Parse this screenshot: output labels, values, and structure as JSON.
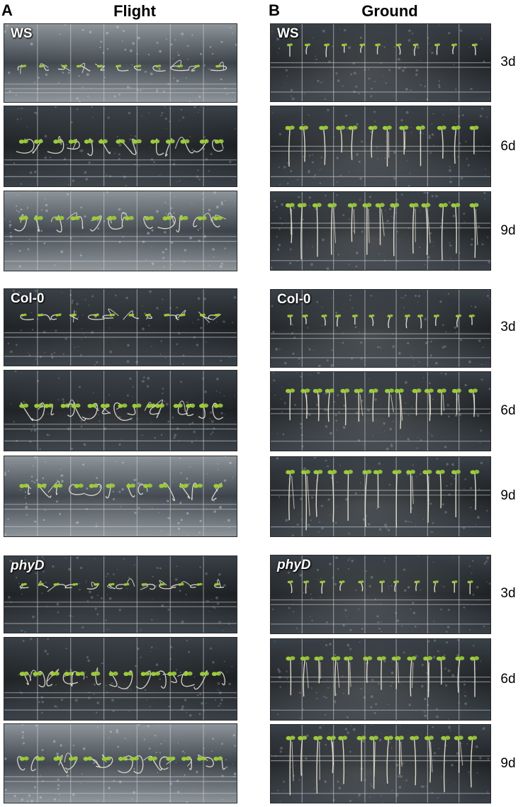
{
  "panels": {
    "a_letter": "A",
    "b_letter": "B"
  },
  "headers": {
    "flight": "Flight",
    "ground": "Ground"
  },
  "genotypes": {
    "ws": "WS",
    "col0": "Col-0",
    "phyd": "phyD"
  },
  "days": {
    "d3": "3d",
    "d6": "6d",
    "d9": "9d"
  },
  "colors": {
    "plate_dark": "#1c1f22",
    "plate_mid": "#3a4148",
    "plate_light": "#8e969c",
    "grid_line": "#c8ced2",
    "seedling_stem": "#e8e4d6",
    "cotyledon": "#9ccc3a",
    "frame": "#2a2a2a"
  }
}
